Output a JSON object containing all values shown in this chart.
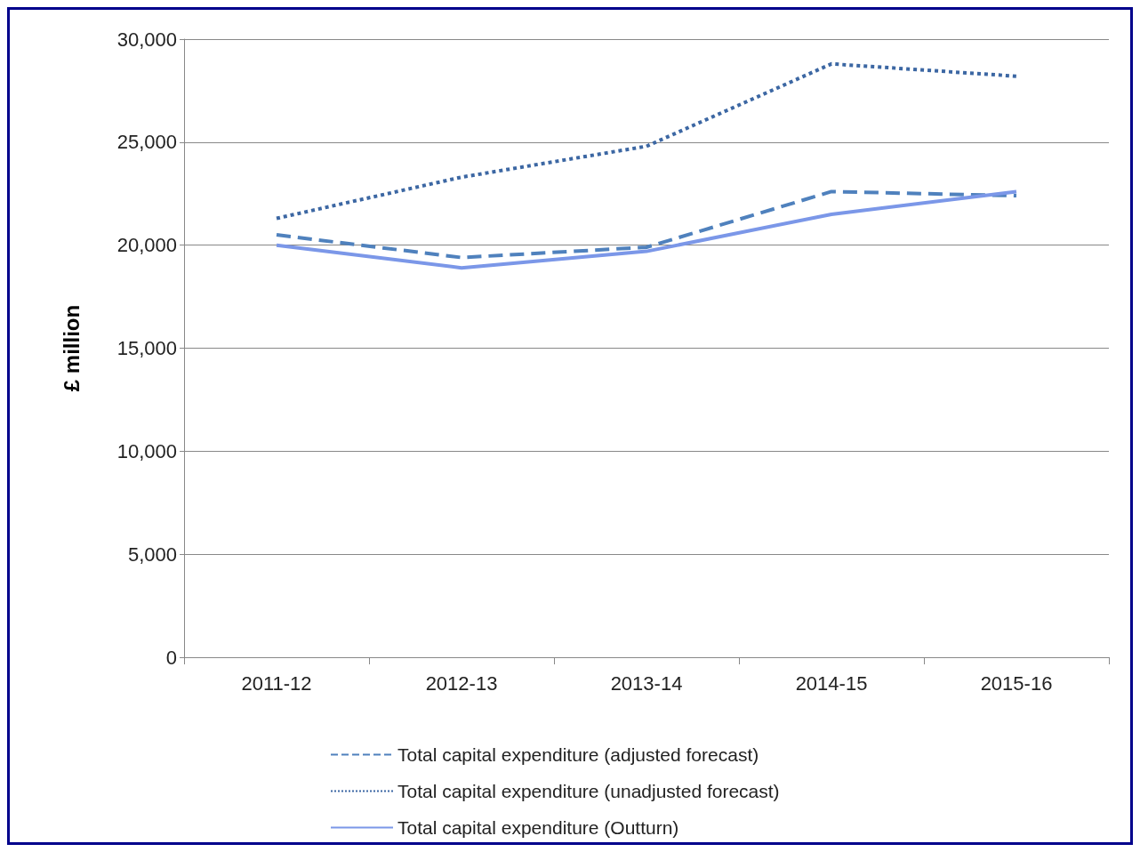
{
  "chart_data": {
    "type": "line",
    "ylabel": "£ million",
    "categories": [
      "2011-12",
      "2012-13",
      "2013-14",
      "2014-15",
      "2015-16"
    ],
    "series": [
      {
        "name": "Total capital expenditure (adjusted forecast)",
        "color": "#4f81bd",
        "line_style": "dashed",
        "values": [
          20500,
          19400,
          19900,
          22600,
          22400
        ]
      },
      {
        "name": "Total capital expenditure (unadjusted forecast)",
        "color": "#3c67a3",
        "line_style": "dotted",
        "values": [
          21300,
          23300,
          24800,
          28800,
          28200
        ]
      },
      {
        "name": "Total capital expenditure (Outturn)",
        "color": "#7b97e8",
        "line_style": "solid",
        "values": [
          20000,
          18900,
          19700,
          21500,
          22600
        ]
      }
    ],
    "ylim": [
      0,
      30000
    ],
    "yticks": [
      0,
      {
        "value": 5000,
        "label": "5,000"
      },
      {
        "value": 10000,
        "label": "10,000"
      },
      {
        "value": 15000,
        "label": "15,000"
      },
      {
        "value": 20000,
        "label": "20,000"
      },
      {
        "value": 25000,
        "label": "25,000"
      },
      {
        "value": 30000,
        "label": "30,000"
      }
    ],
    "grid": "y",
    "legend": "bottom",
    "marker": "none"
  }
}
